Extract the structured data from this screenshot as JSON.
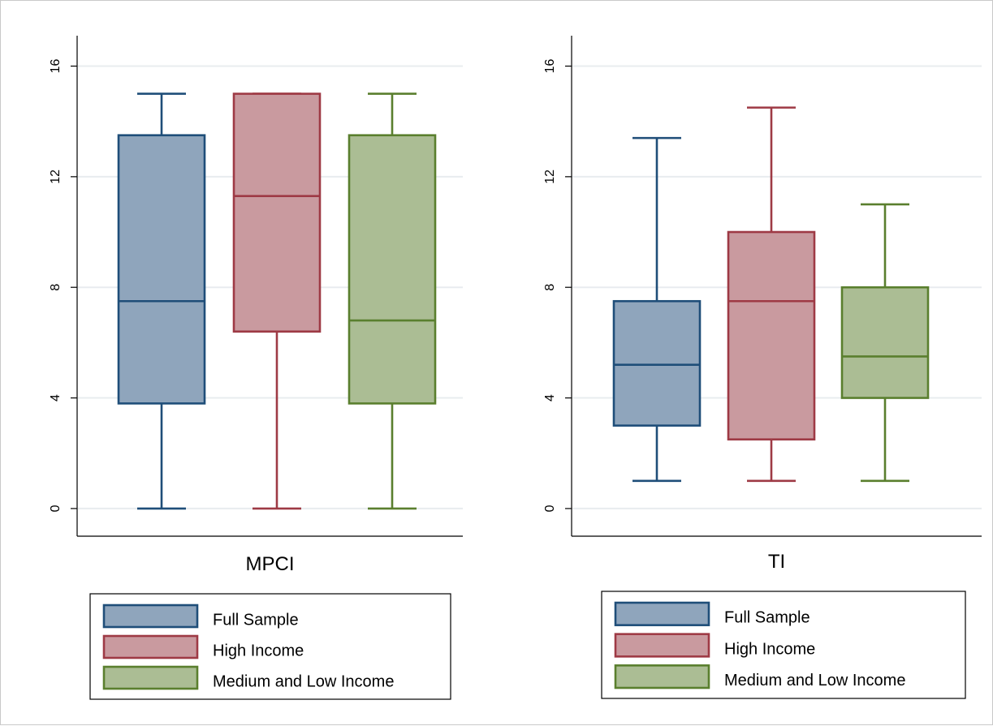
{
  "chart_data": [
    {
      "type": "box",
      "panel_label": "MPCI",
      "ylim": [
        -1,
        17.1
      ],
      "yticks": [
        0,
        4,
        8,
        12,
        16
      ],
      "grid": true,
      "legend_placement": "bottom",
      "series": [
        {
          "name": "Full Sample",
          "color": "#1f4e79",
          "fill": "#8fa5bc",
          "min": 0,
          "q1": 3.8,
          "median": 7.5,
          "q3": 13.5,
          "max": 15
        },
        {
          "name": "High Income",
          "color": "#9e3a45",
          "fill": "#c99a9f",
          "min": 0,
          "q1": 6.4,
          "median": 11.3,
          "q3": 15,
          "max": 15
        },
        {
          "name": "Medium and Low Income",
          "color": "#5a7f2e",
          "fill": "#abbd94",
          "min": 0,
          "q1": 3.8,
          "median": 6.8,
          "q3": 13.5,
          "max": 15
        }
      ]
    },
    {
      "type": "box",
      "panel_label": "TI",
      "ylim": [
        -1,
        17.1
      ],
      "yticks": [
        0,
        4,
        8,
        12,
        16
      ],
      "grid": true,
      "legend_placement": "bottom",
      "series": [
        {
          "name": "Full Sample",
          "color": "#1f4e79",
          "fill": "#8fa5bc",
          "min": 1,
          "q1": 3,
          "median": 5.2,
          "q3": 7.5,
          "max": 13.4
        },
        {
          "name": "High Income",
          "color": "#9e3a45",
          "fill": "#c99a9f",
          "min": 1,
          "q1": 2.5,
          "median": 7.5,
          "q3": 10,
          "max": 14.5
        },
        {
          "name": "Medium and Low Income",
          "color": "#5a7f2e",
          "fill": "#abbd94",
          "min": 1,
          "q1": 4,
          "median": 5.5,
          "q3": 8,
          "max": 11
        }
      ]
    }
  ]
}
